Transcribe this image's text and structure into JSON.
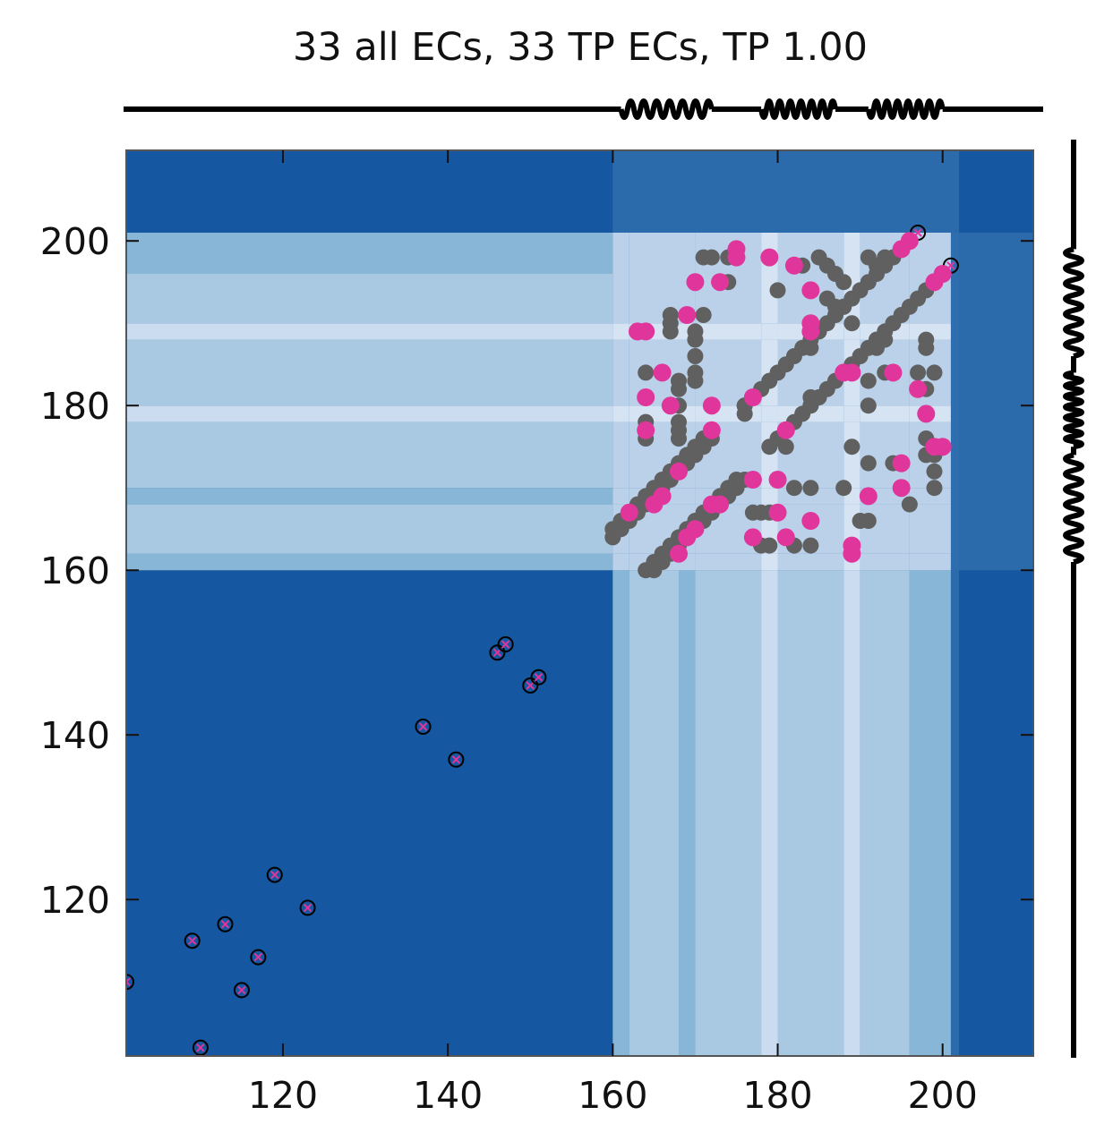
{
  "chart_data": {
    "type": "scatter",
    "title": "33 all ECs, 33 TP ECs, TP 1.00",
    "xlim": [
      101,
      211
    ],
    "ylim": [
      101,
      211
    ],
    "xticks": [
      120,
      140,
      160,
      180,
      200
    ],
    "yticks": [
      120,
      140,
      160,
      180,
      200
    ],
    "xtick_labels": [
      "120",
      "140",
      "160",
      "180",
      "200"
    ],
    "ytick_labels": [
      "120",
      "140",
      "160",
      "180",
      "200"
    ],
    "grid": false,
    "legend": "none",
    "colors": {
      "background_dark": "#1557a0",
      "band_mid": "#2f6fae",
      "band_light": "#87b6d6",
      "band_lighter": "#a9c8e2",
      "band_lightest": "#cbdcf0",
      "band_white": "#e8f0fa",
      "contact_gray": "#606060",
      "true_positive_pink": "#e0359b",
      "outline_black": "#000000"
    },
    "shading_bands": {
      "x_track": [
        [
          160,
          162,
          "band_light"
        ],
        [
          162,
          168,
          "band_lighter"
        ],
        [
          168,
          170,
          "band_light"
        ],
        [
          170,
          178,
          "band_lighter"
        ],
        [
          178,
          180,
          "band_lightest"
        ],
        [
          180,
          188,
          "band_lighter"
        ],
        [
          188,
          190,
          "band_lightest"
        ],
        [
          190,
          196,
          "band_lighter"
        ],
        [
          196,
          201,
          "band_light"
        ]
      ],
      "y_track": [
        [
          160,
          162,
          "band_light"
        ],
        [
          162,
          168,
          "band_lighter"
        ],
        [
          168,
          170,
          "band_light"
        ],
        [
          170,
          178,
          "band_lighter"
        ],
        [
          178,
          180,
          "band_lightest"
        ],
        [
          180,
          188,
          "band_lighter"
        ],
        [
          188,
          190,
          "band_lightest"
        ],
        [
          190,
          196,
          "band_lighter"
        ],
        [
          196,
          201,
          "band_light"
        ]
      ]
    },
    "top_track_springs": [
      [
        161,
        172
      ],
      [
        178,
        187
      ],
      [
        191,
        200
      ]
    ],
    "right_track_springs": [
      [
        161,
        174
      ],
      [
        175,
        184
      ],
      [
        186,
        199
      ]
    ],
    "outlined_points": [
      [
        101,
        110
      ],
      [
        109,
        115
      ],
      [
        110,
        102
      ],
      [
        113,
        117
      ],
      [
        115,
        109
      ],
      [
        117,
        113
      ],
      [
        119,
        123
      ],
      [
        123,
        119
      ],
      [
        137,
        141
      ],
      [
        141,
        137
      ],
      [
        146,
        150
      ],
      [
        147,
        151
      ],
      [
        150,
        146
      ],
      [
        151,
        147
      ],
      [
        197,
        201
      ],
      [
        201,
        197
      ]
    ],
    "gray_points": [
      [
        160,
        164
      ],
      [
        160,
        165
      ],
      [
        161,
        165
      ],
      [
        161,
        166
      ],
      [
        162,
        166
      ],
      [
        162,
        167
      ],
      [
        163,
        167
      ],
      [
        163,
        168
      ],
      [
        164,
        168
      ],
      [
        164,
        169
      ],
      [
        165,
        169
      ],
      [
        165,
        170
      ],
      [
        166,
        170
      ],
      [
        166,
        171
      ],
      [
        167,
        171
      ],
      [
        167,
        172
      ],
      [
        168,
        172
      ],
      [
        168,
        173
      ],
      [
        169,
        173
      ],
      [
        169,
        174
      ],
      [
        170,
        174
      ],
      [
        170,
        175
      ],
      [
        171,
        175
      ],
      [
        171,
        176
      ],
      [
        172,
        176
      ],
      [
        172,
        177
      ],
      [
        176,
        180
      ],
      [
        177,
        181
      ],
      [
        178,
        182
      ],
      [
        179,
        183
      ],
      [
        180,
        184
      ],
      [
        181,
        185
      ],
      [
        182,
        186
      ],
      [
        183,
        187
      ],
      [
        184,
        188
      ],
      [
        185,
        189
      ],
      [
        186,
        190
      ],
      [
        187,
        191
      ],
      [
        188,
        192
      ],
      [
        189,
        193
      ],
      [
        190,
        194
      ],
      [
        191,
        195
      ],
      [
        192,
        196
      ],
      [
        193,
        197
      ],
      [
        194,
        198
      ],
      [
        195,
        199
      ],
      [
        196,
        200
      ],
      [
        164,
        160
      ],
      [
        165,
        160
      ],
      [
        165,
        161
      ],
      [
        166,
        161
      ],
      [
        166,
        162
      ],
      [
        167,
        162
      ],
      [
        167,
        163
      ],
      [
        168,
        163
      ],
      [
        168,
        164
      ],
      [
        169,
        164
      ],
      [
        169,
        165
      ],
      [
        170,
        165
      ],
      [
        170,
        166
      ],
      [
        171,
        166
      ],
      [
        171,
        167
      ],
      [
        172,
        167
      ],
      [
        172,
        168
      ],
      [
        173,
        168
      ],
      [
        173,
        169
      ],
      [
        174,
        169
      ],
      [
        174,
        170
      ],
      [
        175,
        170
      ],
      [
        175,
        171
      ],
      [
        176,
        171
      ],
      [
        180,
        176
      ],
      [
        181,
        177
      ],
      [
        182,
        178
      ],
      [
        183,
        179
      ],
      [
        184,
        180
      ],
      [
        185,
        181
      ],
      [
        186,
        182
      ],
      [
        187,
        183
      ],
      [
        188,
        184
      ],
      [
        189,
        185
      ],
      [
        190,
        186
      ],
      [
        191,
        187
      ],
      [
        192,
        188
      ],
      [
        193,
        189
      ],
      [
        194,
        190
      ],
      [
        195,
        191
      ],
      [
        196,
        192
      ],
      [
        197,
        193
      ],
      [
        198,
        194
      ],
      [
        199,
        195
      ],
      [
        200,
        196
      ],
      [
        164,
        184
      ],
      [
        164,
        181
      ],
      [
        164,
        178
      ],
      [
        164,
        176
      ],
      [
        167,
        191
      ],
      [
        167,
        190
      ],
      [
        167,
        189
      ],
      [
        168,
        183
      ],
      [
        168,
        182
      ],
      [
        168,
        180
      ],
      [
        168,
        178
      ],
      [
        168,
        177
      ],
      [
        168,
        176
      ],
      [
        170,
        189
      ],
      [
        170,
        188
      ],
      [
        170,
        186
      ],
      [
        170,
        184
      ],
      [
        170,
        183
      ],
      [
        171,
        198
      ],
      [
        172,
        198
      ],
      [
        174,
        198
      ],
      [
        174,
        195
      ],
      [
        171,
        191
      ],
      [
        176,
        180
      ],
      [
        176,
        179
      ],
      [
        175,
        170
      ],
      [
        177,
        167
      ],
      [
        178,
        167
      ],
      [
        179,
        167
      ],
      [
        180,
        167
      ],
      [
        178,
        163
      ],
      [
        179,
        163
      ],
      [
        182,
        163
      ],
      [
        184,
        163
      ],
      [
        182,
        170
      ],
      [
        184,
        170
      ],
      [
        180,
        194
      ],
      [
        183,
        197
      ],
      [
        185,
        198
      ],
      [
        186,
        197
      ],
      [
        187,
        196
      ],
      [
        188,
        195
      ],
      [
        186,
        193
      ],
      [
        187,
        192
      ],
      [
        188,
        192
      ],
      [
        189,
        190
      ],
      [
        189,
        184
      ],
      [
        189,
        175
      ],
      [
        181,
        175
      ],
      [
        179,
        175
      ],
      [
        184,
        187
      ],
      [
        184,
        181
      ],
      [
        184,
        180
      ],
      [
        188,
        170
      ],
      [
        190,
        166
      ],
      [
        191,
        166
      ],
      [
        191,
        173
      ],
      [
        191,
        180
      ],
      [
        191,
        183
      ],
      [
        192,
        188
      ],
      [
        192,
        187
      ],
      [
        193,
        188
      ],
      [
        193,
        184
      ],
      [
        194,
        173
      ],
      [
        195,
        170
      ],
      [
        196,
        168
      ],
      [
        197,
        184
      ],
      [
        198,
        188
      ],
      [
        198,
        187
      ],
      [
        198,
        182
      ],
      [
        198,
        176
      ],
      [
        198,
        174
      ],
      [
        199,
        184
      ],
      [
        199,
        174
      ],
      [
        199,
        172
      ],
      [
        199,
        170
      ],
      [
        191,
        198
      ],
      [
        192,
        197
      ],
      [
        193,
        198
      ]
    ],
    "pink_points": [
      [
        163,
        189
      ],
      [
        164,
        189
      ],
      [
        164,
        181
      ],
      [
        164,
        177
      ],
      [
        166,
        184
      ],
      [
        167,
        180
      ],
      [
        169,
        191
      ],
      [
        170,
        195
      ],
      [
        172,
        180
      ],
      [
        172,
        177
      ],
      [
        173,
        195
      ],
      [
        175,
        199
      ],
      [
        175,
        198
      ],
      [
        179,
        198
      ],
      [
        182,
        197
      ],
      [
        184,
        194
      ],
      [
        184,
        190
      ],
      [
        184,
        189
      ],
      [
        177,
        181
      ],
      [
        181,
        177
      ],
      [
        188,
        184
      ],
      [
        189,
        184
      ],
      [
        194,
        184
      ],
      [
        195,
        199
      ],
      [
        196,
        200
      ],
      [
        197,
        182
      ],
      [
        198,
        179
      ],
      [
        199,
        175
      ],
      [
        200,
        175
      ],
      [
        199,
        195
      ],
      [
        200,
        196
      ],
      [
        195,
        173
      ],
      [
        195,
        170
      ],
      [
        191,
        169
      ],
      [
        189,
        163
      ],
      [
        189,
        162
      ],
      [
        184,
        166
      ],
      [
        180,
        167
      ],
      [
        180,
        171
      ],
      [
        177,
        171
      ],
      [
        177,
        164
      ],
      [
        181,
        164
      ],
      [
        168,
        162
      ],
      [
        169,
        164
      ],
      [
        170,
        165
      ],
      [
        172,
        168
      ],
      [
        168,
        172
      ],
      [
        162,
        167
      ],
      [
        165,
        168
      ],
      [
        166,
        169
      ],
      [
        173,
        168
      ]
    ]
  }
}
